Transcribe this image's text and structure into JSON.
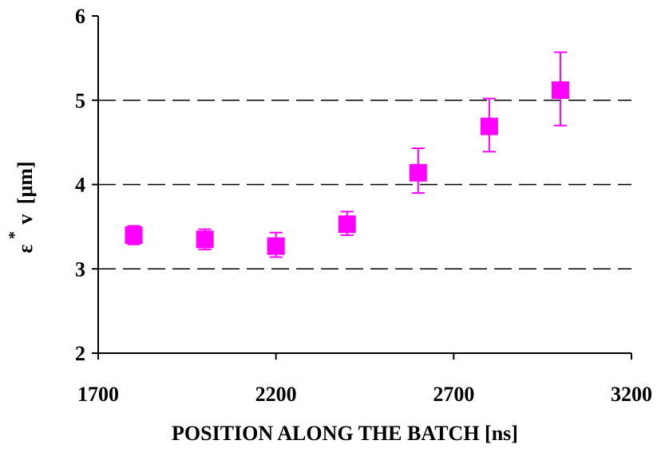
{
  "chart_data": {
    "type": "scatter",
    "title": "",
    "xlabel": "POSITION ALONG THE BATCH [ns]",
    "ylabel": {
      "base": "ε",
      "superscript": "*",
      "subscript": "v",
      "unit": "[μm]"
    },
    "xlim": [
      1700,
      3200
    ],
    "ylim": [
      2,
      6
    ],
    "x_ticks": [
      "1700",
      "2200",
      "2700",
      "3200"
    ],
    "y_ticks": [
      "2",
      "3",
      "4",
      "5",
      "6"
    ],
    "grid": "horizontal dashed",
    "legend": "none",
    "marker_color": "#ff00ff",
    "series": [
      {
        "points": [
          {
            "x": 1800,
            "y": 3.4,
            "err_low": 3.29,
            "err_high": 3.51
          },
          {
            "x": 2000,
            "y": 3.35,
            "err_low": 3.23,
            "err_high": 3.47
          },
          {
            "x": 2200,
            "y": 3.27,
            "err_low": 3.14,
            "err_high": 3.43
          },
          {
            "x": 2400,
            "y": 3.53,
            "err_low": 3.4,
            "err_high": 3.68
          },
          {
            "x": 2600,
            "y": 4.14,
            "err_low": 3.9,
            "err_high": 4.43
          },
          {
            "x": 2800,
            "y": 4.69,
            "err_low": 4.39,
            "err_high": 5.02
          },
          {
            "x": 3000,
            "y": 5.12,
            "err_low": 4.7,
            "err_high": 5.57
          }
        ]
      }
    ]
  }
}
